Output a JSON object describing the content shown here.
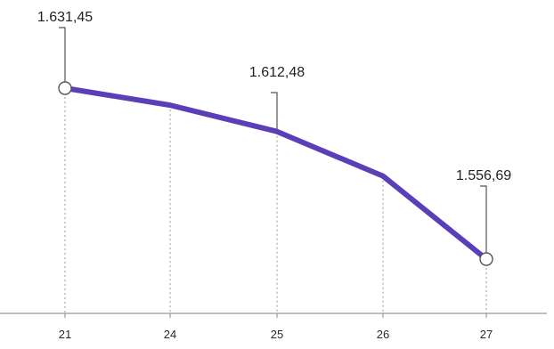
{
  "chart_data": {
    "type": "line",
    "categories": [
      "21",
      "24",
      "25",
      "26",
      "27"
    ],
    "values": [
      1631.45,
      1624,
      1612.48,
      1593,
      1556.69
    ],
    "data_labels": [
      {
        "index": 0,
        "text": "1.631,45"
      },
      {
        "index": 2,
        "text": "1.612,48"
      },
      {
        "index": 4,
        "text": "1.556,69"
      }
    ],
    "marked_points": [
      0,
      4
    ],
    "title": "",
    "xlabel": "",
    "ylabel": "",
    "ylim": [
      1530,
      1640
    ],
    "grid": "vertical dotted drop lines",
    "legend": "none",
    "colors": {
      "line": "#5a3fb8",
      "marker_fill": "#ffffff",
      "marker_stroke": "#555555",
      "axis": "#9a9a9a",
      "grid": "#9a9a9a",
      "leader": "#555555"
    }
  }
}
